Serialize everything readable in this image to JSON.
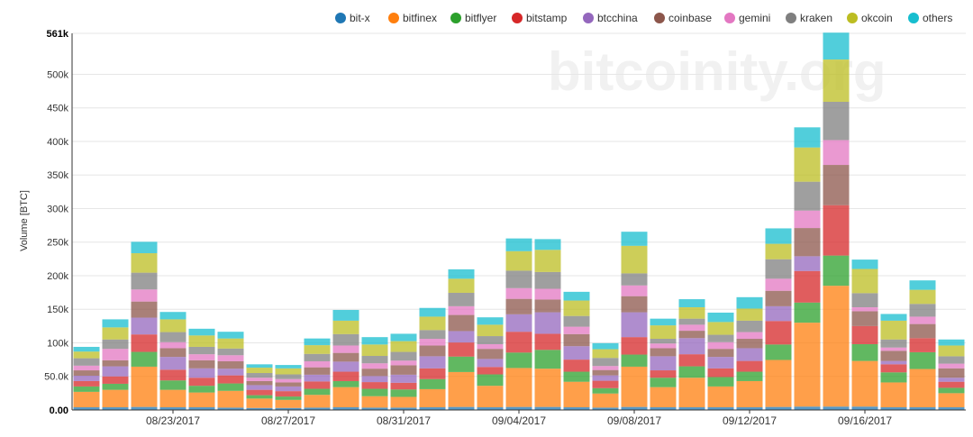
{
  "chart_data": {
    "type": "bar",
    "stacked": true,
    "watermark": "bitcoinity.org",
    "ylabel": "Volume [BTC]",
    "xlabel": "",
    "ylim": [
      0,
      561000
    ],
    "y_ticks": [
      {
        "value": 0,
        "label": "0.00",
        "bold": true
      },
      {
        "value": 50000,
        "label": "50.0k",
        "bold": false
      },
      {
        "value": 100000,
        "label": "100k",
        "bold": false
      },
      {
        "value": 150000,
        "label": "150k",
        "bold": false
      },
      {
        "value": 200000,
        "label": "200k",
        "bold": false
      },
      {
        "value": 250000,
        "label": "250k",
        "bold": false
      },
      {
        "value": 300000,
        "label": "300k",
        "bold": false
      },
      {
        "value": 350000,
        "label": "350k",
        "bold": false
      },
      {
        "value": 400000,
        "label": "400k",
        "bold": false
      },
      {
        "value": 450000,
        "label": "450k",
        "bold": false
      },
      {
        "value": 500000,
        "label": "500k",
        "bold": false
      },
      {
        "value": 561000,
        "label": "561k",
        "bold": true
      }
    ],
    "x_ticks": [
      {
        "index": 3,
        "label": "08/23/2017"
      },
      {
        "index": 7,
        "label": "08/27/2017"
      },
      {
        "index": 11,
        "label": "08/31/2017"
      },
      {
        "index": 15,
        "label": "09/04/2017"
      },
      {
        "index": 19,
        "label": "09/08/2017"
      },
      {
        "index": 23,
        "label": "09/12/2017"
      },
      {
        "index": 27,
        "label": "09/16/2017"
      }
    ],
    "grid": true,
    "legend_position": "top-right",
    "categories": [
      "08/20/2017",
      "08/21/2017",
      "08/22/2017",
      "08/23/2017",
      "08/24/2017",
      "08/25/2017",
      "08/26/2017",
      "08/27/2017",
      "08/28/2017",
      "08/29/2017",
      "08/30/2017",
      "08/31/2017",
      "09/01/2017",
      "09/02/2017",
      "09/03/2017",
      "09/04/2017",
      "09/05/2017",
      "09/06/2017",
      "09/07/2017",
      "09/08/2017",
      "09/09/2017",
      "09/10/2017",
      "09/11/2017",
      "09/12/2017",
      "09/13/2017",
      "09/14/2017",
      "09/15/2017",
      "09/16/2017",
      "09/17/2017",
      "09/18/2017",
      "09/19/2017"
    ],
    "series": [
      {
        "name": "bit-x",
        "color": "#1f77b4",
        "values": [
          4000,
          4000,
          4500,
          4000,
          4000,
          3500,
          3000,
          3000,
          3500,
          4000,
          3500,
          3500,
          4000,
          4500,
          4000,
          4500,
          4500,
          4000,
          3500,
          4500,
          4000,
          4000,
          4000,
          4000,
          4500,
          5000,
          5000,
          5000,
          4000,
          4000,
          4000
        ]
      },
      {
        "name": "bitfinex",
        "color": "#ff7f0e",
        "values": [
          23000,
          26000,
          60000,
          26000,
          22000,
          25000,
          14000,
          12000,
          19000,
          30000,
          17000,
          16000,
          27000,
          52000,
          32000,
          58000,
          57000,
          38000,
          21000,
          60000,
          30000,
          44000,
          31000,
          39000,
          70000,
          125000,
          180000,
          68000,
          37000,
          57000,
          21000
        ]
      },
      {
        "name": "bitflyer",
        "color": "#2ca02c",
        "values": [
          8000,
          9000,
          22000,
          14000,
          10000,
          11000,
          5000,
          5000,
          9000,
          9000,
          11000,
          11000,
          15000,
          23000,
          17000,
          23000,
          28000,
          15000,
          8000,
          18000,
          14000,
          17000,
          14000,
          14000,
          23000,
          30000,
          45000,
          25000,
          15000,
          25000,
          8000
        ]
      },
      {
        "name": "bitstamp",
        "color": "#d62728",
        "values": [
          8000,
          11000,
          26000,
          16000,
          12000,
          12000,
          8000,
          8000,
          11000,
          14000,
          10000,
          10000,
          16000,
          21000,
          11000,
          31000,
          24000,
          18000,
          11000,
          26000,
          11000,
          18000,
          13000,
          16000,
          35000,
          47000,
          75000,
          27000,
          12000,
          21000,
          9000
        ]
      },
      {
        "name": "btcchina",
        "color": "#9467bd",
        "values": [
          8000,
          15000,
          25000,
          19000,
          14000,
          10000,
          7000,
          7000,
          10000,
          15000,
          9000,
          12000,
          18000,
          17000,
          12000,
          26000,
          32000,
          20000,
          8000,
          37000,
          21000,
          24000,
          17000,
          19000,
          22000,
          22000,
          0,
          0,
          5000,
          0,
          6000
        ]
      },
      {
        "name": "coinbase",
        "color": "#8c564b",
        "values": [
          8000,
          9000,
          24000,
          13000,
          12000,
          11000,
          6000,
          6000,
          11000,
          13000,
          11000,
          14000,
          16000,
          24000,
          15000,
          23000,
          19000,
          18000,
          8000,
          24000,
          12000,
          11000,
          12000,
          14000,
          23000,
          42000,
          60000,
          22000,
          15000,
          21000,
          14000
        ]
      },
      {
        "name": "gemini",
        "color": "#e377c2",
        "values": [
          7000,
          17000,
          18000,
          9000,
          9000,
          9000,
          5000,
          5000,
          9000,
          11000,
          8000,
          7000,
          10000,
          13000,
          7000,
          16000,
          16000,
          11000,
          6000,
          16000,
          7000,
          9000,
          10000,
          10000,
          18000,
          26000,
          37000,
          6000,
          5000,
          11000,
          7000
        ]
      },
      {
        "name": "kraken",
        "color": "#7f7f7f",
        "values": [
          11000,
          14000,
          25000,
          15000,
          11000,
          10000,
          7000,
          7000,
          11000,
          17000,
          11000,
          13000,
          13000,
          20000,
          12000,
          26000,
          25000,
          16000,
          12000,
          18000,
          7000,
          9000,
          11000,
          17000,
          29000,
          43000,
          57000,
          21000,
          12000,
          19000,
          11000
        ]
      },
      {
        "name": "okcoin",
        "color": "#bcbd22",
        "values": [
          10000,
          18000,
          29000,
          19000,
          17000,
          15000,
          8000,
          9000,
          13000,
          20000,
          17000,
          16000,
          20000,
          21000,
          17000,
          29000,
          33000,
          23000,
          13000,
          41000,
          20000,
          17000,
          19000,
          18000,
          23000,
          51000,
          63000,
          36000,
          28000,
          21000,
          16000
        ]
      },
      {
        "name": "others",
        "color": "#17becf",
        "values": [
          7000,
          12000,
          17000,
          11000,
          10000,
          10000,
          5000,
          5000,
          10000,
          16000,
          11000,
          11000,
          13000,
          14000,
          11000,
          19000,
          16000,
          13000,
          9000,
          21000,
          10000,
          12000,
          14000,
          17000,
          23000,
          30000,
          40000,
          14000,
          10000,
          14000,
          9000
        ]
      }
    ]
  }
}
